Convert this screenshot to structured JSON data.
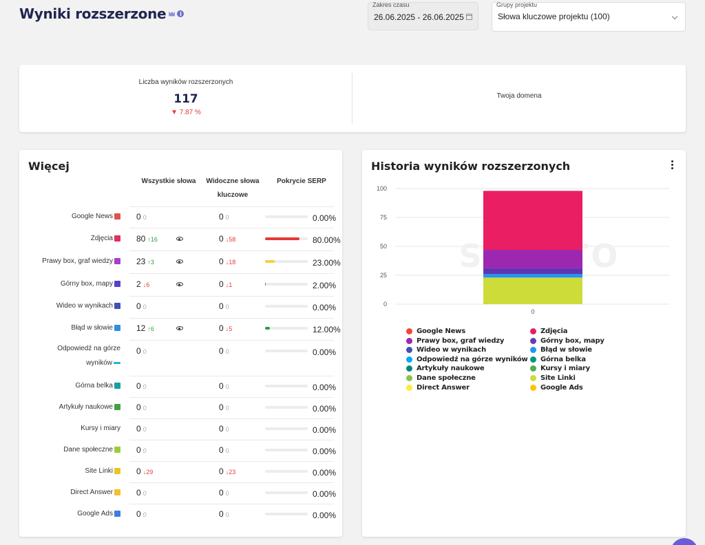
{
  "page": {
    "title": "Wyniki rozszerzone"
  },
  "filters": {
    "date_label": "Zakres czasu",
    "date_value": "26.06.2025 - 26.06.2025",
    "group_label": "Grupy projektu",
    "group_value": "Słowa kluczowe projektu (100)"
  },
  "summary": {
    "label": "Liczba wyników rozszerzonych",
    "value": "117",
    "change": "7.87 %",
    "domain_label": "Twoja domena"
  },
  "more": {
    "title": "Więcej",
    "columns": {
      "all": "Wszystkie słowa",
      "visible": "Widoczne słowa kluczowe",
      "serp": "Pokrycie SERP"
    },
    "rows": [
      {
        "label": "Google News",
        "all": "0",
        "all_delta": "0",
        "all_dir": "zero",
        "vis": "0",
        "vis_delta": "0",
        "vis_dir": "zero",
        "serp": "0.00%",
        "fill": 0,
        "icon_color": "#e05252"
      },
      {
        "label": "Zdjęcia",
        "all": "80",
        "all_delta": "16",
        "all_dir": "up",
        "eye": true,
        "vis": "0",
        "vis_delta": "58",
        "vis_dir": "down",
        "serp": "80.00%",
        "fill": 0.8,
        "bar_color": "#e53935",
        "icon_color": "#e0305e"
      },
      {
        "label": "Prawy box, graf wiedzy",
        "all": "23",
        "all_delta": "3",
        "all_dir": "up",
        "eye": true,
        "vis": "0",
        "vis_delta": "18",
        "vis_dir": "down",
        "serp": "23.00%",
        "fill": 0.23,
        "bar_color": "#f2d23c",
        "icon_color": "#a83fc9"
      },
      {
        "label": "Górny box, mapy",
        "all": "2",
        "all_delta": "6",
        "all_dir": "down",
        "eye": true,
        "vis": "0",
        "vis_delta": "1",
        "vis_dir": "down",
        "serp": "2.00%",
        "fill": 0.02,
        "bar_color": "#2e9e47",
        "icon_color": "#5b3fc9"
      },
      {
        "label": "Wideo w wynikach",
        "all": "0",
        "all_delta": "0",
        "all_dir": "zero",
        "vis": "0",
        "vis_delta": "0",
        "vis_dir": "zero",
        "serp": "0.00%",
        "fill": 0,
        "icon_color": "#3f51b5"
      },
      {
        "label": "Błąd w słowie",
        "all": "12",
        "all_delta": "6",
        "all_dir": "up",
        "eye": true,
        "vis": "0",
        "vis_delta": "5",
        "vis_dir": "down",
        "serp": "12.00%",
        "fill": 0.12,
        "bar_color": "#2e9e47",
        "icon_color": "#2f8fe0"
      },
      {
        "label": "Odpowiedź na górze wyników",
        "all": "0",
        "all_delta": "0",
        "all_dir": "zero",
        "vis": "0",
        "vis_delta": "0",
        "vis_dir": "zero",
        "serp": "0.00%",
        "fill": 0,
        "icon_color": "#1fb5d6",
        "multi": true
      },
      {
        "label": "Górna belka",
        "all": "0",
        "all_delta": "0",
        "all_dir": "zero",
        "vis": "0",
        "vis_delta": "0",
        "vis_dir": "zero",
        "serp": "0.00%",
        "fill": 0,
        "icon_color": "#16a0a0"
      },
      {
        "label": "Artykuły naukowe",
        "all": "0",
        "all_delta": "0",
        "all_dir": "zero",
        "vis": "0",
        "vis_delta": "0",
        "vis_dir": "zero",
        "serp": "0.00%",
        "fill": 0,
        "icon_color": "#43a047"
      },
      {
        "label": "Kursy i miary",
        "all": "0",
        "all_delta": "0",
        "all_dir": "zero",
        "vis": "0",
        "vis_delta": "0",
        "vis_dir": "zero",
        "serp": "0.00%",
        "fill": 0,
        "icon_color": ""
      },
      {
        "label": "Dane społeczne",
        "all": "0",
        "all_delta": "0",
        "all_dir": "zero",
        "vis": "0",
        "vis_delta": "0",
        "vis_dir": "zero",
        "serp": "0.00%",
        "fill": 0,
        "icon_color": "#9ccc3c"
      },
      {
        "label": "Site Linki",
        "all": "0",
        "all_delta": "29",
        "all_dir": "down",
        "vis": "0",
        "vis_delta": "23",
        "vis_dir": "down",
        "serp": "0.00%",
        "fill": 0,
        "icon_color": "#e6c52a"
      },
      {
        "label": "Direct Answer",
        "all": "0",
        "all_delta": "0",
        "all_dir": "zero",
        "vis": "0",
        "vis_delta": "0",
        "vis_dir": "zero",
        "serp": "0.00%",
        "fill": 0,
        "icon_color": "#f2c12e"
      },
      {
        "label": "Google Ads",
        "all": "0",
        "all_delta": "0",
        "all_dir": "zero",
        "vis": "0",
        "vis_delta": "0",
        "vis_dir": "zero",
        "serp": "0.00%",
        "fill": 0,
        "icon_color": "#3f7de0"
      }
    ]
  },
  "history": {
    "title": "Historia wyników rozszerzonych",
    "watermark": "SENUTO"
  },
  "chart_data": {
    "type": "bar",
    "stacked": true,
    "categories": [
      "0"
    ],
    "ylim": [
      0,
      100
    ],
    "yticks": [
      0,
      25,
      50,
      75,
      100
    ],
    "grid": true,
    "legend_position": "bottom",
    "series": [
      {
        "name": "Dane społeczne",
        "values": [
          23
        ],
        "color": "#cddc39"
      },
      {
        "name": "Błąd w słowie",
        "values": [
          3
        ],
        "color": "#2196f3"
      },
      {
        "name": "Wideo w wynikach",
        "values": [
          5
        ],
        "color": "#5e35b1"
      },
      {
        "name": "Prawy box, graf wiedzy",
        "values": [
          16
        ],
        "color": "#9c27b0"
      },
      {
        "name": "Zdjęcia",
        "values": [
          51
        ],
        "color": "#e91e63"
      }
    ],
    "legend": [
      {
        "name": "Google News",
        "color": "#f44336"
      },
      {
        "name": "Zdjęcia",
        "color": "#e91e63"
      },
      {
        "name": "Prawy box, graf wiedzy",
        "color": "#9c27b0"
      },
      {
        "name": "Górny box, mapy",
        "color": "#673ab7"
      },
      {
        "name": "Wideo w wynikach",
        "color": "#3f51b5"
      },
      {
        "name": "Błąd w słowie",
        "color": "#2196f3"
      },
      {
        "name": "Odpowiedź na górze wyników",
        "color": "#03a9f4"
      },
      {
        "name": "Górna belka",
        "color": "#009688"
      },
      {
        "name": "Artykuły naukowe",
        "color": "#00897b"
      },
      {
        "name": "Kursy i miary",
        "color": "#4caf50"
      },
      {
        "name": "Dane społeczne",
        "color": "#8bc34a"
      },
      {
        "name": "Site Linki",
        "color": "#cddc39"
      },
      {
        "name": "Direct Answer",
        "color": "#ffeb3b"
      },
      {
        "name": "Google Ads",
        "color": "#ffc107"
      }
    ]
  }
}
